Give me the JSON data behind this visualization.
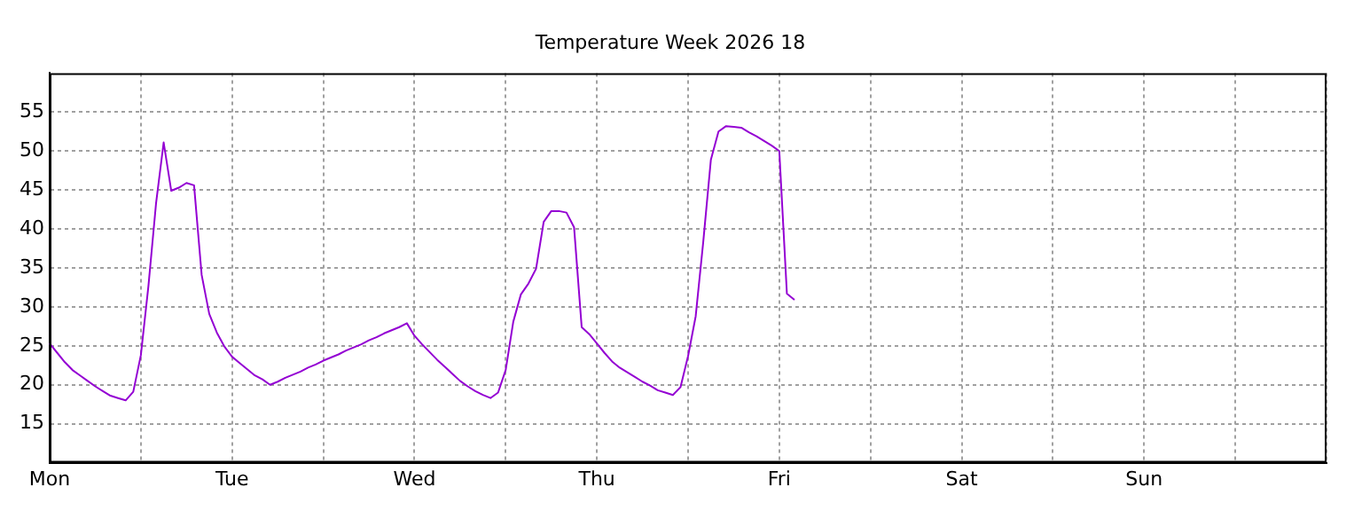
{
  "chart_data": {
    "type": "line",
    "title": "Temperature Week 2026 18",
    "categories": [
      "Mon",
      null,
      null,
      null,
      null,
      null,
      null,
      null,
      null,
      null,
      null,
      null,
      null,
      null,
      null,
      null,
      null,
      null,
      null,
      null,
      null,
      null,
      null,
      null,
      "Tue",
      null,
      null,
      null,
      null,
      null,
      null,
      null,
      null,
      null,
      null,
      null,
      null,
      null,
      null,
      null,
      null,
      null,
      null,
      null,
      null,
      null,
      null,
      null,
      "Wed",
      null,
      null,
      null,
      null,
      null,
      null,
      null,
      null,
      null,
      null,
      null,
      null,
      null,
      null,
      null,
      null,
      null,
      null,
      null,
      null,
      null,
      null,
      null,
      "Thu",
      null,
      null,
      null,
      null,
      null,
      null,
      null,
      null,
      null,
      null,
      null,
      null,
      null,
      null,
      null,
      null,
      null,
      null,
      null,
      null,
      null,
      null,
      null,
      "Fri",
      null,
      null,
      null,
      null,
      null,
      null,
      null,
      null,
      null,
      null,
      null,
      null,
      null,
      null,
      null,
      null,
      null,
      null,
      null,
      null,
      null,
      null,
      null,
      "Sat",
      null,
      null,
      null,
      null,
      null,
      null,
      null,
      null,
      null,
      null,
      null,
      null,
      null,
      null,
      null,
      null,
      null,
      null,
      null,
      null,
      null,
      null,
      null,
      "Sun",
      null,
      null,
      null,
      null,
      null,
      null,
      null,
      null,
      null,
      null,
      null,
      null,
      null,
      null,
      null,
      null,
      null,
      null,
      null,
      null,
      null,
      null,
      null,
      null
    ],
    "series": [
      {
        "color": "#9400d3",
        "values": [
          25.3,
          24.1,
          22.9,
          21.9,
          21.2,
          20.5,
          19.8,
          19.2,
          18.6,
          18.3,
          18,
          19.1,
          23.8,
          32.7,
          43.3,
          51.1,
          44.9,
          45.3,
          45.9,
          45.6,
          34.1,
          29.1,
          26.7,
          24.9,
          23.6,
          22.8,
          22,
          21.2,
          20.7,
          20,
          20.4,
          20.9,
          21.3,
          21.7,
          22.2,
          22.6,
          23.1,
          23.5,
          23.9,
          24.4,
          24.8,
          25.2,
          25.7,
          26.1,
          26.6,
          27,
          27.4,
          27.9,
          26.3,
          25.2,
          24.2,
          23.2,
          22.3,
          21.4,
          20.5,
          19.8,
          19.2,
          18.7,
          18.3,
          19,
          21.9,
          28.1,
          31.6,
          33,
          34.9,
          40.9,
          42.3,
          42.3,
          42.1,
          40.2,
          27.4,
          26.5,
          25.3,
          24.1,
          23,
          22.2,
          21.6,
          21,
          20.4,
          19.9,
          19.3,
          19,
          18.7,
          19.7,
          23.7,
          28.8,
          38.4,
          48.9,
          52.5,
          53.2,
          53.1,
          53,
          52.4,
          51.9,
          51.3,
          50.7,
          50,
          31.7,
          30.9,
          null,
          null,
          null,
          null,
          null,
          null,
          null,
          null,
          null,
          null,
          null,
          null,
          null,
          null,
          null,
          null,
          null,
          null,
          null,
          null,
          null,
          null,
          null,
          null,
          null,
          null,
          null,
          null,
          null,
          null,
          null,
          null,
          null,
          null,
          null,
          null,
          null,
          null,
          null,
          null,
          null,
          null,
          null,
          null,
          null,
          null,
          null,
          null,
          null,
          null,
          null,
          null,
          null,
          null,
          null,
          null,
          null,
          null,
          null,
          null,
          null,
          null,
          null,
          null,
          null,
          null,
          null,
          null,
          null,
          null
        ]
      }
    ],
    "ylim": [
      10,
      60
    ],
    "yticks": [
      15,
      20,
      25,
      30,
      35,
      40,
      45,
      50,
      55
    ],
    "grid": true
  }
}
